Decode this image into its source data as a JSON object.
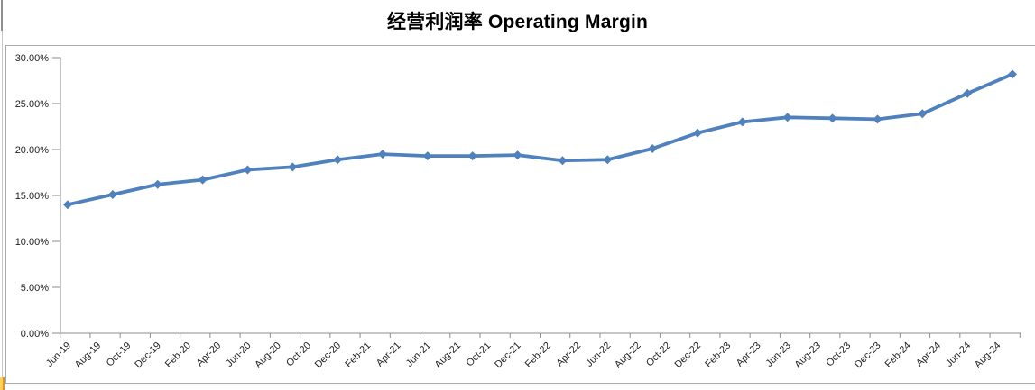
{
  "chart": {
    "title": "经营利润率 Operating Margin"
  },
  "chart_data": {
    "type": "line",
    "title": "经营利润率 Operating Margin",
    "legend": false,
    "grid": false,
    "line_color": "#4F81BD",
    "marker_shape": "diamond",
    "y_axis": {
      "min": 0,
      "max": 30,
      "tick_labels": [
        "0.00%",
        "5.00%",
        "10.00%",
        "15.00%",
        "20.00%",
        "25.00%",
        "30.00%"
      ]
    },
    "x_axis": {
      "label_rotation_deg": 45,
      "tick_labels": [
        "Jun-19",
        "Aug-19",
        "Oct-19",
        "Dec-19",
        "Feb-20",
        "Apr-20",
        "Jun-20",
        "Aug-20",
        "Oct-20",
        "Dec-20",
        "Feb-21",
        "Apr-21",
        "Jun-21",
        "Aug-21",
        "Oct-21",
        "Dec-21",
        "Feb-22",
        "Apr-22",
        "Jun-22",
        "Aug-22",
        "Oct-22",
        "Dec-22",
        "Feb-23",
        "Apr-23",
        "Jun-23",
        "Aug-23",
        "Oct-23",
        "Dec-23",
        "Feb-24",
        "Apr-24",
        "Jun-24",
        "Aug-24"
      ]
    },
    "series": [
      {
        "name": "Operating Margin",
        "x": [
          "Jun-19",
          "Sep-19",
          "Dec-19",
          "Mar-20",
          "Jun-20",
          "Sep-20",
          "Dec-20",
          "Mar-21",
          "Jun-21",
          "Sep-21",
          "Dec-21",
          "Mar-22",
          "Jun-22",
          "Sep-22",
          "Dec-22",
          "Mar-23",
          "Jun-23",
          "Sep-23",
          "Dec-23",
          "Mar-24",
          "Jun-24",
          "Sep-24"
        ],
        "values_pct": [
          14.0,
          15.1,
          16.2,
          16.7,
          17.8,
          18.1,
          18.9,
          19.5,
          19.3,
          19.3,
          19.4,
          18.8,
          18.9,
          20.1,
          21.8,
          23.0,
          23.5,
          23.4,
          23.3,
          23.9,
          26.1,
          28.2
        ]
      }
    ],
    "colors": {
      "axis": "#8e8e8e",
      "frame_border": "#ababab",
      "title_text": "#000000",
      "tick_text": "#1f1f1f"
    }
  }
}
